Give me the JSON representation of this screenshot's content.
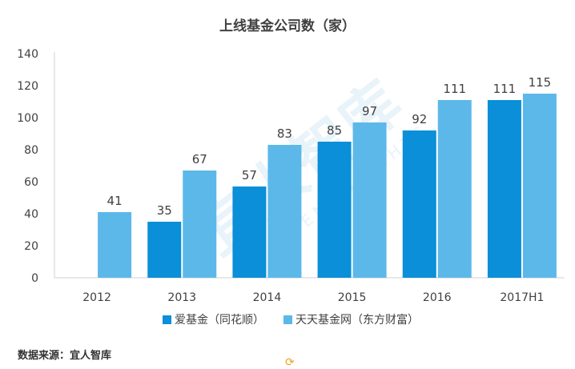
{
  "chart_data": {
    "type": "bar",
    "title": "上线基金公司数（家）",
    "categories": [
      "2012",
      "2013",
      "2014",
      "2015",
      "2016",
      "2017H1"
    ],
    "series": [
      {
        "name": "爱基金（同花顺）",
        "color": "#0a8fd8",
        "values": [
          null,
          35,
          57,
          85,
          92,
          111
        ]
      },
      {
        "name": "天天基金网（东方财富）",
        "color": "#5cb8e9",
        "values": [
          41,
          67,
          83,
          97,
          111,
          115
        ]
      }
    ],
    "ylim": [
      0,
      140
    ],
    "yticks": [
      0,
      20,
      40,
      60,
      80,
      100,
      120,
      140
    ],
    "xlabel": "",
    "ylabel": "",
    "grid": false,
    "legend_position": "bottom"
  },
  "source": "数据来源：宜人智库",
  "watermark": {
    "cn": "宜人智库",
    "en": "YIREN INSIGHTS"
  },
  "icons": {
    "refresh": "refresh-icon"
  }
}
